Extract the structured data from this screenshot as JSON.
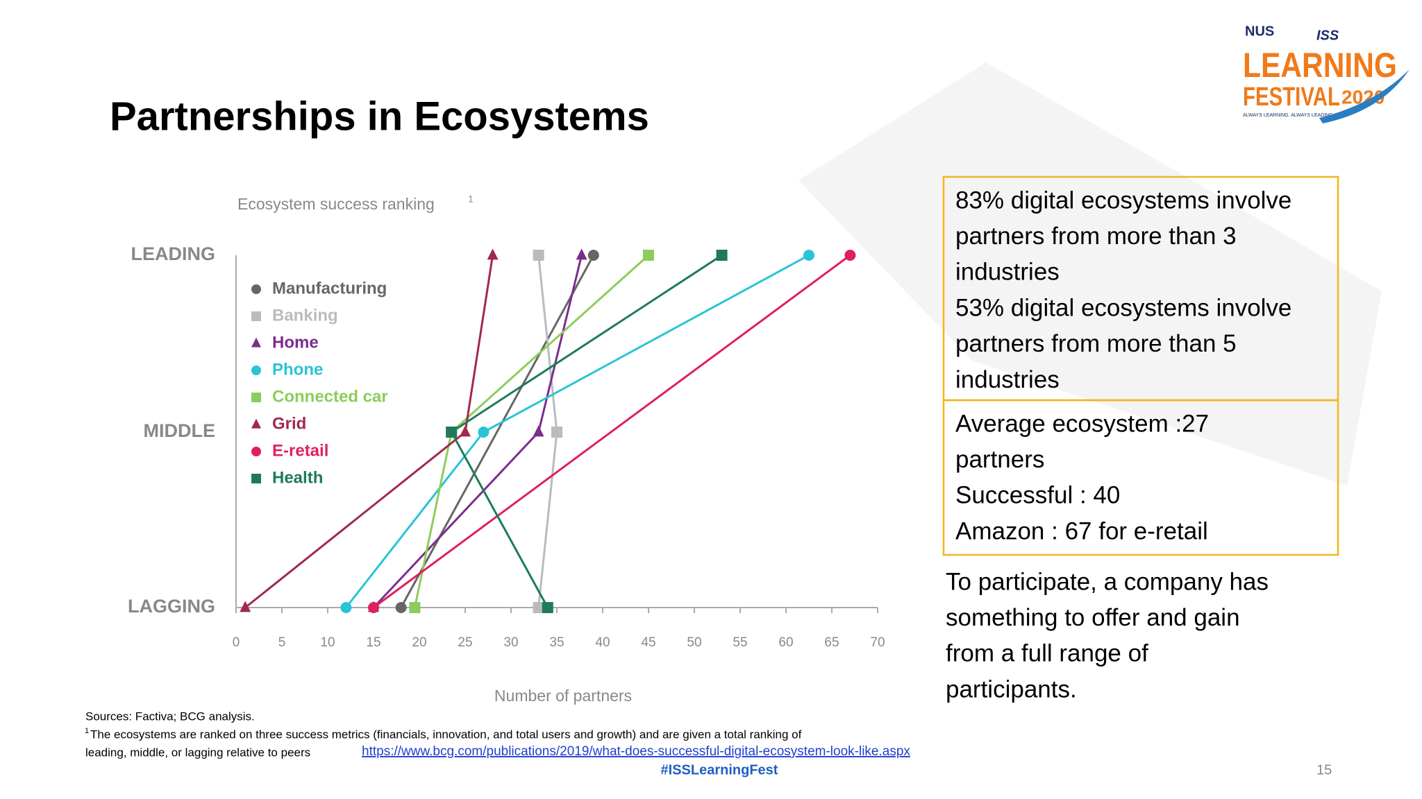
{
  "slide": {
    "title": "Partnerships in Ecosystems",
    "logo": {
      "nus": "NUS",
      "iss": "ISS",
      "learning": "LEARNING",
      "festival": "FESTIVAL",
      "year": "2020",
      "tagline": "ALWAYS LEARNING. ALWAYS LEADING"
    },
    "box1": [
      "83% digital ecosystems involve",
      "partners from more than 3",
      "industries",
      "53% digital ecosystems involve",
      "partners from more than 5",
      "industries"
    ],
    "box2": [
      "Average ecosystem :27",
      "partners",
      "Successful : 40",
      "Amazon : 67 for e-retail"
    ],
    "paragraph": [
      "To participate, a company has",
      "something to offer and gain",
      "from a full range of",
      "participants."
    ],
    "sources": "Sources: Factiva; BCG analysis.",
    "footnote_marker": "1",
    "footnote_line1": "The ecosystems are ranked on three success metrics (financials, innovation, and total users and growth) and are given a total ranking of",
    "footnote_line2": "leading, middle, or lagging relative to peers",
    "link": "https://www.bcg.com/publications/2019/what-does-successful-digital-ecosystem-look-like.aspx",
    "hashtag": "#ISSLearningFest",
    "page_number": "15"
  },
  "chart_data": {
    "type": "line",
    "title": "Ecosystem success ranking",
    "title_note": "1",
    "x_label": "Number of partners",
    "y_categories": [
      "LAGGING",
      "MIDDLE",
      "LEADING"
    ],
    "xlim": [
      0,
      70
    ],
    "xticks": [
      0,
      5,
      10,
      15,
      20,
      25,
      30,
      35,
      40,
      45,
      50,
      55,
      60,
      65,
      70
    ],
    "series": [
      {
        "name": "Manufacturing",
        "color": "#666666",
        "marker": "circle",
        "ranks": [
          "LAGGING",
          "LEADING"
        ],
        "values": [
          18,
          39
        ]
      },
      {
        "name": "Banking",
        "color": "#bbbbbb",
        "marker": "square",
        "ranks": [
          "LAGGING",
          "MIDDLE",
          "LEADING"
        ],
        "values": [
          33,
          35,
          33
        ]
      },
      {
        "name": "Home",
        "color": "#7b2d8e",
        "marker": "triangle",
        "ranks": [
          "LAGGING",
          "MIDDLE",
          "LEADING"
        ],
        "values": [
          15,
          33,
          37.7
        ]
      },
      {
        "name": "Phone",
        "color": "#29c4d6",
        "marker": "circle",
        "ranks": [
          "LAGGING",
          "MIDDLE",
          "LEADING"
        ],
        "values": [
          12,
          27,
          62.5
        ]
      },
      {
        "name": "Connected car",
        "color": "#8ccc5c",
        "marker": "square",
        "ranks": [
          "LAGGING",
          "MIDDLE",
          "LEADING"
        ],
        "values": [
          19.5,
          23.5,
          45
        ]
      },
      {
        "name": "Grid",
        "color": "#a0284f",
        "marker": "triangle",
        "ranks": [
          "LAGGING",
          "MIDDLE",
          "LEADING"
        ],
        "values": [
          1,
          25,
          28
        ]
      },
      {
        "name": "E-retail",
        "color": "#e0205e",
        "marker": "circle",
        "ranks": [
          "LAGGING",
          "LEADING"
        ],
        "values": [
          15,
          67
        ]
      },
      {
        "name": "Health",
        "color": "#1e7a5a",
        "marker": "square",
        "ranks": [
          "LAGGING",
          "MIDDLE",
          "LEADING"
        ],
        "values": [
          34,
          23.5,
          53
        ]
      }
    ]
  }
}
